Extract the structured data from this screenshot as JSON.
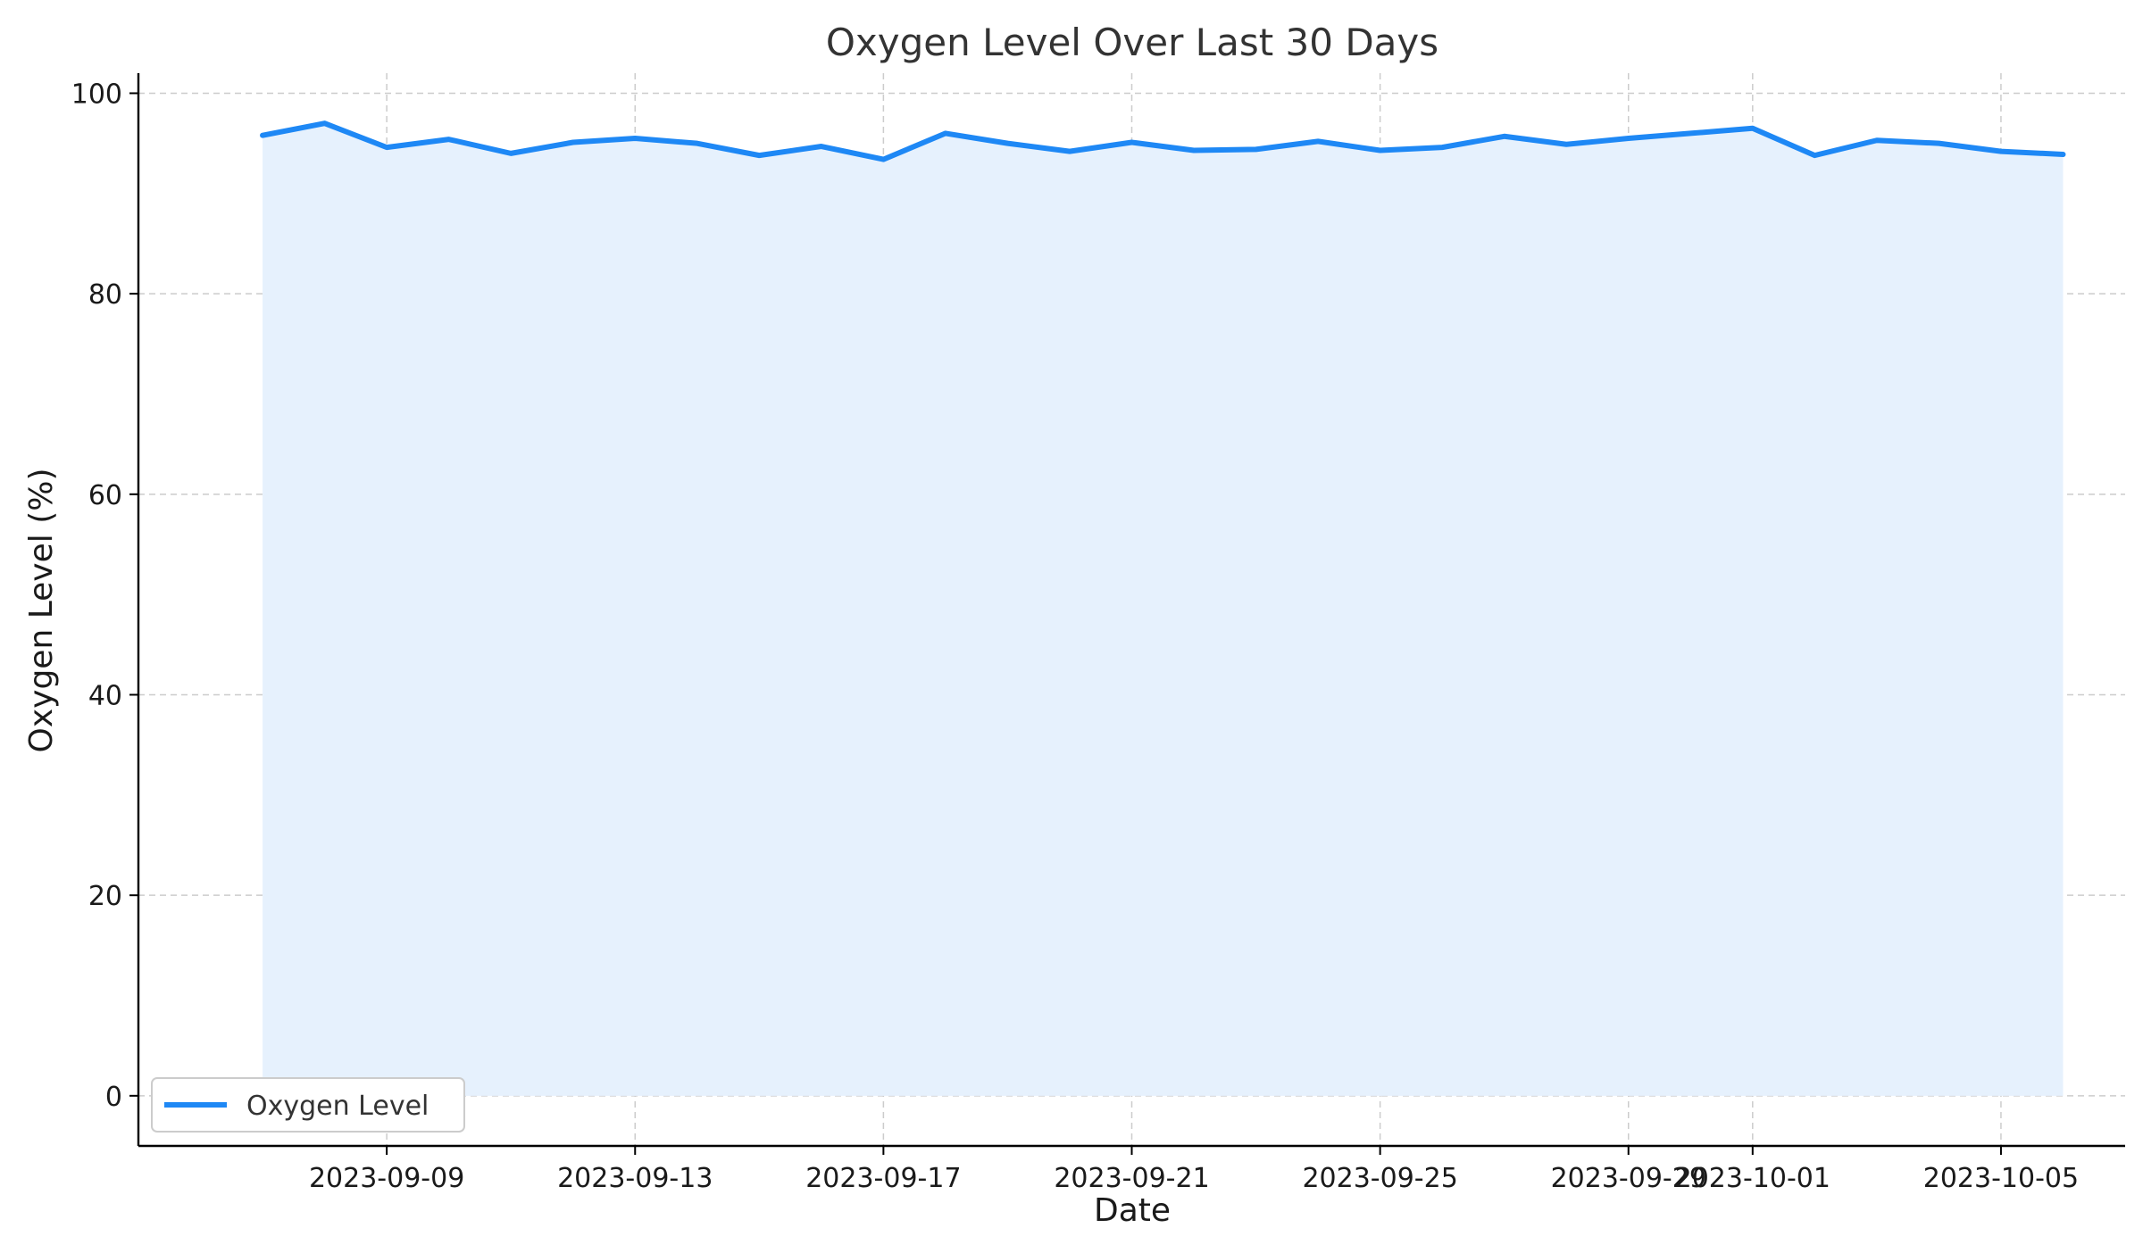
{
  "chart_data": {
    "type": "area",
    "title": "Oxygen Level Over Last 30 Days",
    "xlabel": "Date",
    "ylabel": "Oxygen Level (%)",
    "ylim": [
      -5,
      102
    ],
    "x_start": "2023-09-07",
    "x_end": "2023-10-06",
    "xlim": [
      "2023-09-05",
      "2023-10-07"
    ],
    "yticks": [
      0,
      20,
      40,
      60,
      80,
      100
    ],
    "xticks": [
      "2023-09-09",
      "2023-09-13",
      "2023-09-17",
      "2023-09-21",
      "2023-09-25",
      "2023-09-29",
      "2023-10-01",
      "2023-10-05"
    ],
    "grid": true,
    "legend_position": "lower-left",
    "line_color": "#1e88f5",
    "fill_color": "#e6f1fd",
    "series": [
      {
        "name": "Oxygen Level",
        "x": [
          "2023-09-07",
          "2023-09-08",
          "2023-09-09",
          "2023-09-10",
          "2023-09-11",
          "2023-09-12",
          "2023-09-13",
          "2023-09-14",
          "2023-09-15",
          "2023-09-16",
          "2023-09-17",
          "2023-09-18",
          "2023-09-19",
          "2023-09-20",
          "2023-09-21",
          "2023-09-22",
          "2023-09-23",
          "2023-09-24",
          "2023-09-25",
          "2023-09-26",
          "2023-09-27",
          "2023-09-28",
          "2023-09-29",
          "2023-09-30",
          "2023-10-01",
          "2023-10-02",
          "2023-10-03",
          "2023-10-04",
          "2023-10-05",
          "2023-10-06"
        ],
        "values": [
          95.8,
          97.0,
          94.6,
          95.4,
          94.0,
          95.1,
          95.5,
          95.0,
          93.8,
          94.7,
          93.4,
          96.0,
          95.0,
          94.2,
          95.1,
          94.3,
          94.4,
          95.2,
          94.3,
          94.6,
          95.7,
          94.9,
          95.5,
          96.0,
          96.5,
          93.8,
          95.3,
          95.0,
          94.2,
          93.9
        ]
      }
    ]
  }
}
